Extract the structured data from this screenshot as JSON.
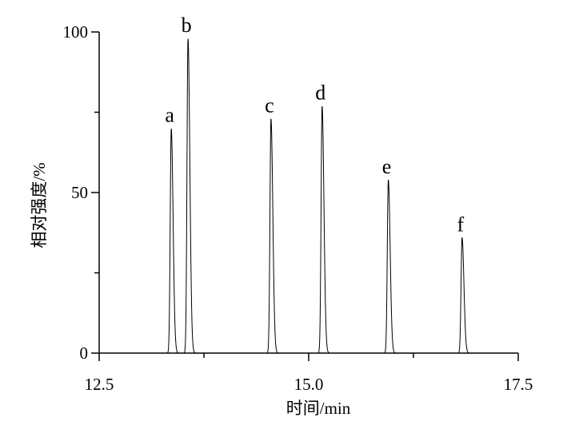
{
  "chart_data": {
    "type": "line",
    "title": "",
    "xlabel": "时间/min",
    "ylabel": "相对强度/%",
    "xlim": [
      12.5,
      17.5
    ],
    "ylim": [
      0,
      100
    ],
    "x_ticks": [
      12.5,
      15.0,
      17.5
    ],
    "x_tick_labels": [
      "12.5",
      "15.0",
      "17.5"
    ],
    "y_ticks": [
      0,
      50,
      100
    ],
    "y_tick_labels": [
      "0",
      "50",
      "100"
    ],
    "grid": false,
    "line_color": "#000000",
    "series": [
      {
        "peaks": [
          {
            "label": "a",
            "x": 13.36,
            "y": 70
          },
          {
            "label": "b",
            "x": 13.56,
            "y": 98
          },
          {
            "label": "c",
            "x": 14.55,
            "y": 73
          },
          {
            "label": "d",
            "x": 15.16,
            "y": 77
          },
          {
            "label": "e",
            "x": 15.95,
            "y": 54
          },
          {
            "label": "f",
            "x": 16.83,
            "y": 36
          }
        ]
      }
    ]
  }
}
